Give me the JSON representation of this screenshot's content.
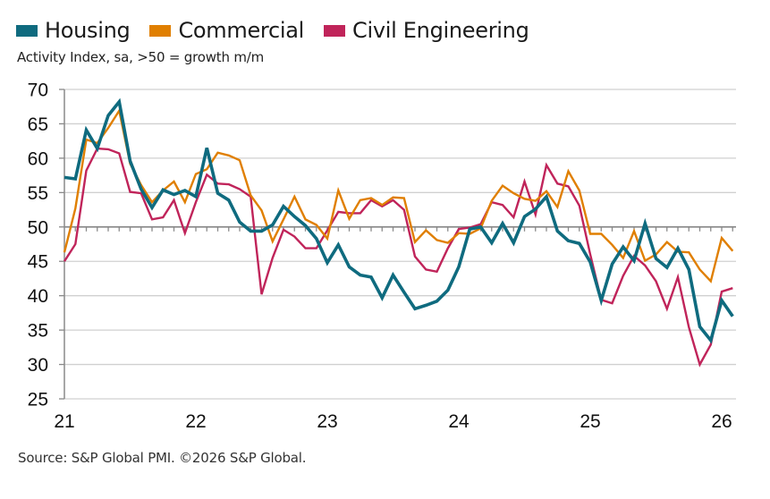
{
  "legend": [
    {
      "label": "Housing",
      "color": "#0f6b7f"
    },
    {
      "label": "Commercial",
      "color": "#e07f00"
    },
    {
      "label": "Civil Engineering",
      "color": "#c0245a"
    }
  ],
  "subtitle": "Activity Index, sa, >50 = growth m/m",
  "source": "Source: S&P Global PMI. ©2026 S&P Global.",
  "chart_data": {
    "type": "line",
    "title": "",
    "xlabel": "",
    "ylabel": "Activity Index, sa, >50 = growth m/m",
    "ylim": [
      25,
      70
    ],
    "yticks": [
      25,
      30,
      35,
      40,
      45,
      50,
      55,
      60,
      65,
      70
    ],
    "ytick_labels": [
      "25",
      "30",
      "35",
      "40",
      "45",
      "50",
      "55",
      "60",
      "65",
      "70"
    ],
    "x_start": "2021-01",
    "x_end": "2026-02",
    "x_frequency": "monthly",
    "xtick_labels": [
      "21",
      "22",
      "23",
      "24",
      "25",
      "26"
    ],
    "xtick_month_index": [
      0,
      12,
      24,
      36,
      48,
      60
    ],
    "reference_line": 50,
    "grid": true,
    "legend_position": "top-left",
    "series": [
      {
        "name": "Housing",
        "color": "#0f6b7f",
        "values": [
          57.2,
          57.0,
          64.1,
          61.4,
          66.2,
          68.2,
          59.6,
          55.5,
          52.8,
          55.4,
          54.7,
          55.3,
          54.4,
          61.5,
          54.9,
          53.9,
          50.7,
          49.4,
          49.4,
          50.3,
          53.0,
          51.5,
          50.2,
          48.3,
          44.8,
          47.4,
          44.2,
          43.0,
          42.7,
          39.7,
          43.0,
          40.5,
          38.1,
          38.6,
          39.2,
          40.8,
          44.2,
          49.7,
          50.0,
          47.7,
          50.5,
          47.7,
          51.5,
          52.6,
          54.4,
          49.4,
          48.0,
          47.6,
          44.9,
          39.3,
          44.6,
          47.1,
          45.1,
          50.5,
          45.4,
          44.1,
          46.9,
          43.8,
          35.5,
          33.5,
          39.3,
          37.0
        ]
      },
      {
        "name": "Commercial",
        "color": "#e07f00",
        "values": [
          46.3,
          52.7,
          62.7,
          62.2,
          64.4,
          66.9,
          59.2,
          56.1,
          53.6,
          55.3,
          56.6,
          53.6,
          57.7,
          58.4,
          60.8,
          60.4,
          59.7,
          54.6,
          52.4,
          47.9,
          51.1,
          54.4,
          51.1,
          50.3,
          48.3,
          55.3,
          51.2,
          53.9,
          54.2,
          53.2,
          54.3,
          54.2,
          47.8,
          49.5,
          48.1,
          47.7,
          49.1,
          49.0,
          49.8,
          53.8,
          56.0,
          54.9,
          54.1,
          53.8,
          55.2,
          52.9,
          58.1,
          55.3,
          49.0,
          49.0,
          47.4,
          45.5,
          49.4,
          45.1,
          46.0,
          47.8,
          46.4,
          46.3,
          43.8,
          42.1,
          48.4,
          46.5
        ]
      },
      {
        "name": "Civil Engineering",
        "color": "#c0245a",
        "values": [
          45.0,
          47.5,
          58.2,
          61.4,
          61.3,
          60.7,
          55.1,
          54.9,
          51.1,
          51.4,
          53.9,
          49.1,
          53.6,
          57.6,
          56.3,
          56.2,
          55.5,
          54.4,
          40.2,
          45.5,
          49.6,
          48.6,
          46.9,
          46.9,
          49.5,
          52.2,
          52.0,
          52.0,
          53.9,
          53.0,
          53.9,
          52.5,
          45.7,
          43.8,
          43.5,
          46.9,
          49.7,
          49.9,
          50.4,
          53.6,
          53.2,
          51.4,
          56.6,
          51.8,
          59.0,
          56.3,
          55.9,
          53.1,
          46.0,
          39.4,
          38.9,
          42.9,
          45.8,
          44.4,
          42.1,
          38.1,
          42.7,
          35.4,
          30.0,
          32.9,
          40.6,
          41.1
        ]
      }
    ]
  }
}
